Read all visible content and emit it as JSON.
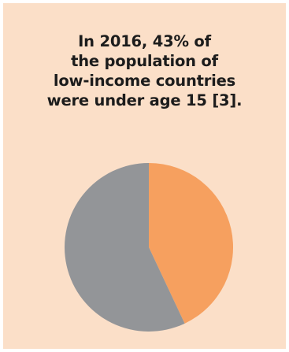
{
  "card": {
    "background": "#fbdfc8"
  },
  "title_lines": [
    "In 2016, 43% of",
    "the population of",
    "low-income countries",
    "were under age 15 [3]."
  ],
  "chart_data": {
    "type": "pie",
    "title": "In 2016, 43% of the population of low-income countries were under age 15 [3].",
    "slices": [
      {
        "value": 43,
        "color": "#f6a05f"
      },
      {
        "value": 57,
        "color": "#939598"
      }
    ]
  }
}
